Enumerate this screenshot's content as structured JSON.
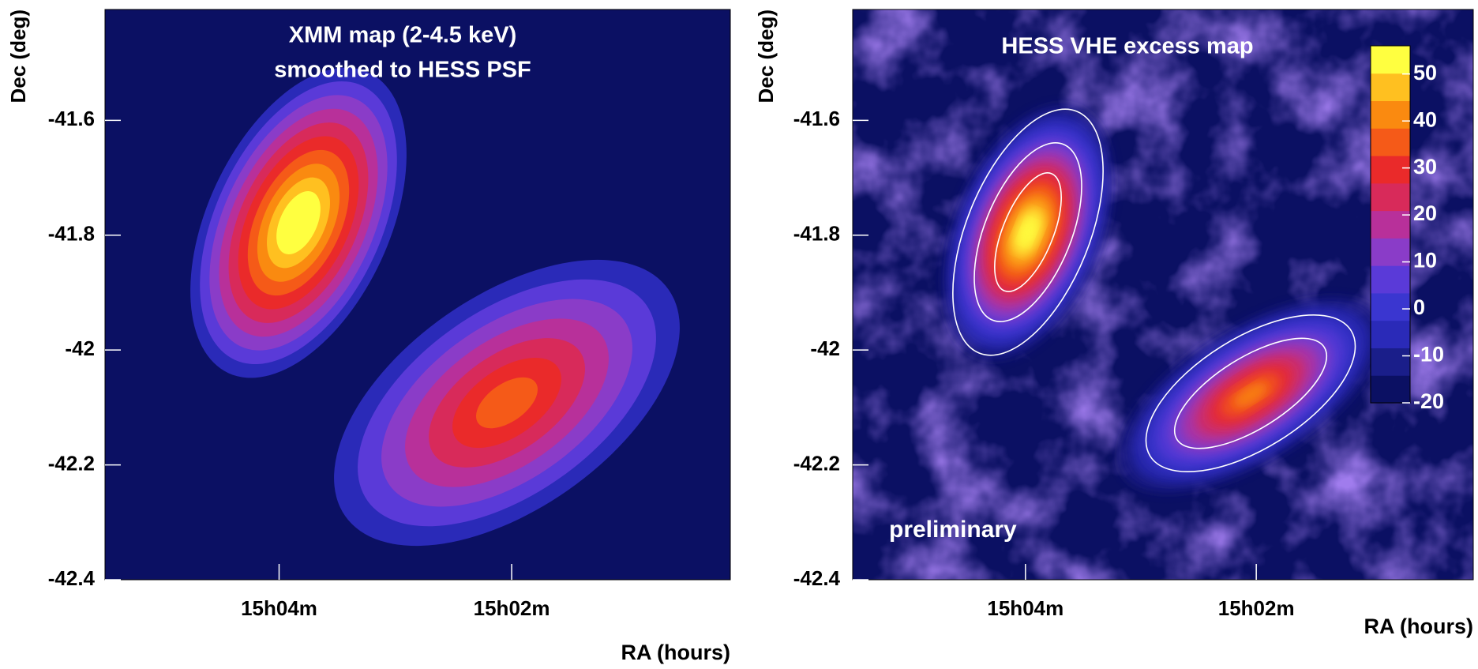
{
  "chart_data": [
    {
      "type": "heatmap",
      "title": "XMM map (2-4.5 keV)",
      "subtitle": "smoothed to HESS PSF",
      "xlabel": "RA (hours)",
      "ylabel": "Dec (deg)",
      "xlim": [
        15.0917,
        15.0019
      ],
      "xticks": [
        {
          "value": 15.0667,
          "label": "15h04m"
        },
        {
          "value": 15.0333,
          "label": "15h02m"
        }
      ],
      "ylim": [
        -42.4,
        -41.407
      ],
      "yticks": [
        -41.6,
        -41.8,
        -42,
        -42.2,
        -42.4
      ],
      "colormap": [
        "#0b1063",
        "#2a2ab8",
        "#5a3ad8",
        "#8a3cc8",
        "#b8309a",
        "#d82a5a",
        "#ea2a2a",
        "#f55a18",
        "#fa8a10",
        "#ffc020",
        "#ffff40"
      ]
    },
    {
      "type": "heatmap",
      "title": "HESS VHE excess map",
      "annotation": "preliminary",
      "xlabel": "RA (hours)",
      "ylabel": "Dec (deg)",
      "xlim": [
        15.0917,
        15.0019
      ],
      "xticks": [
        {
          "value": 15.0667,
          "label": "15h04m"
        },
        {
          "value": 15.0333,
          "label": "15h02m"
        }
      ],
      "ylim": [
        -42.4,
        -41.407
      ],
      "yticks": [
        -41.6,
        -41.8,
        -42,
        -42.2,
        -42.4
      ],
      "colorbar": {
        "lim": [
          -20,
          56
        ],
        "ticks": [
          50,
          40,
          30,
          20,
          10,
          0,
          -10,
          -20
        ]
      },
      "colormap": [
        "#0b1063",
        "#1a1e8a",
        "#2a2ab8",
        "#3a36d0",
        "#5a3ad8",
        "#8a3cc8",
        "#b8309a",
        "#d82a5a",
        "#ea2a2a",
        "#f55a18",
        "#fa8a10",
        "#ffc020",
        "#ffff40"
      ]
    }
  ]
}
